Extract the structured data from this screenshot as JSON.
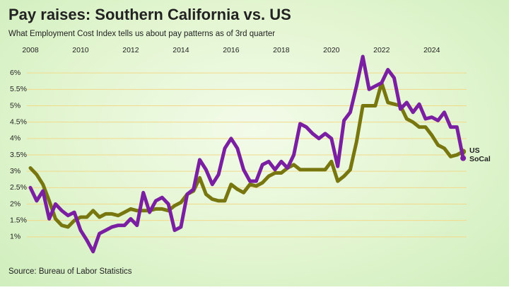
{
  "chart_data": {
    "type": "line",
    "title": "Pay raises: Southern California vs. US",
    "subtitle": "What Employment Cost Index tells us about pay patterns as of 3rd quarter",
    "source": "Source: Bureau of Labor Statistics",
    "x": [
      2008,
      2008.25,
      2008.5,
      2008.75,
      2009,
      2009.25,
      2009.5,
      2009.75,
      2010,
      2010.25,
      2010.5,
      2010.75,
      2011,
      2011.25,
      2011.5,
      2011.75,
      2012,
      2012.25,
      2012.5,
      2012.75,
      2013,
      2013.25,
      2013.5,
      2013.75,
      2014,
      2014.25,
      2014.5,
      2014.75,
      2015,
      2015.25,
      2015.5,
      2015.75,
      2016,
      2016.25,
      2016.5,
      2016.75,
      2017,
      2017.25,
      2017.5,
      2017.75,
      2018,
      2018.25,
      2018.5,
      2018.75,
      2019,
      2019.25,
      2019.5,
      2019.75,
      2020,
      2020.25,
      2020.5,
      2020.75,
      2021,
      2021.25,
      2021.5,
      2021.75,
      2022,
      2022.25,
      2022.5,
      2022.75,
      2023,
      2023.25,
      2023.5,
      2023.75,
      2024,
      2024.25,
      2024.5,
      2024.75,
      2025,
      2025.25
    ],
    "series": [
      {
        "name": "US",
        "color": "#77760f",
        "values": [
          3.1,
          2.9,
          2.6,
          2.1,
          1.55,
          1.35,
          1.3,
          1.5,
          1.6,
          1.6,
          1.8,
          1.6,
          1.7,
          1.7,
          1.65,
          1.75,
          1.85,
          1.8,
          1.8,
          1.8,
          1.85,
          1.85,
          1.8,
          1.95,
          2.05,
          2.3,
          2.4,
          2.8,
          2.3,
          2.15,
          2.1,
          2.1,
          2.6,
          2.45,
          2.35,
          2.6,
          2.55,
          2.65,
          2.85,
          2.95,
          2.95,
          3.1,
          3.2,
          3.05,
          3.05,
          3.05,
          3.05,
          3.05,
          3.3,
          2.7,
          2.85,
          3.05,
          3.9,
          5.0,
          5.0,
          5.0,
          5.7,
          5.1,
          5.05,
          5.0,
          4.6,
          4.5,
          4.35,
          4.35,
          4.1,
          3.8,
          3.7,
          3.45,
          3.5,
          3.6
        ]
      },
      {
        "name": "SoCal",
        "color": "#7b1fa2",
        "values": [
          2.5,
          2.1,
          2.4,
          1.55,
          2.0,
          1.8,
          1.65,
          1.75,
          1.2,
          0.9,
          0.55,
          1.1,
          1.2,
          1.3,
          1.35,
          1.35,
          1.55,
          1.35,
          2.35,
          1.75,
          2.1,
          2.2,
          2.0,
          1.2,
          1.3,
          2.3,
          2.45,
          3.35,
          3.05,
          2.6,
          2.9,
          3.7,
          4.0,
          3.7,
          3.05,
          2.7,
          2.7,
          3.2,
          3.3,
          3.05,
          3.3,
          3.1,
          3.5,
          4.45,
          4.35,
          4.15,
          4.0,
          4.15,
          4.0,
          3.15,
          4.55,
          4.8,
          5.6,
          6.5,
          5.5,
          5.6,
          5.7,
          6.1,
          5.85,
          4.9,
          5.1,
          4.8,
          5.05,
          4.6,
          4.65,
          4.55,
          4.8,
          4.35,
          4.35,
          3.4
        ]
      }
    ],
    "xlim": [
      2008,
      2025.5
    ],
    "xticks": [
      2008,
      2010,
      2012,
      2014,
      2016,
      2018,
      2020,
      2022,
      2024
    ],
    "ylim": [
      0.5,
      6.5
    ],
    "yticks": [
      {
        "value": 1,
        "label": "1%"
      },
      {
        "value": 1.5,
        "label": "1.5%"
      },
      {
        "value": 2,
        "label": "2%"
      },
      {
        "value": 2.5,
        "label": "2.5%"
      },
      {
        "value": 3,
        "label": "3%"
      },
      {
        "value": 3.5,
        "label": "3.5%"
      },
      {
        "value": 4,
        "label": "4%"
      },
      {
        "value": 4.5,
        "label": "4.5%"
      },
      {
        "value": 5,
        "label": "5%"
      },
      {
        "value": 5.5,
        "label": "5.5%"
      },
      {
        "value": 6,
        "label": "6%"
      }
    ],
    "grid": true
  }
}
